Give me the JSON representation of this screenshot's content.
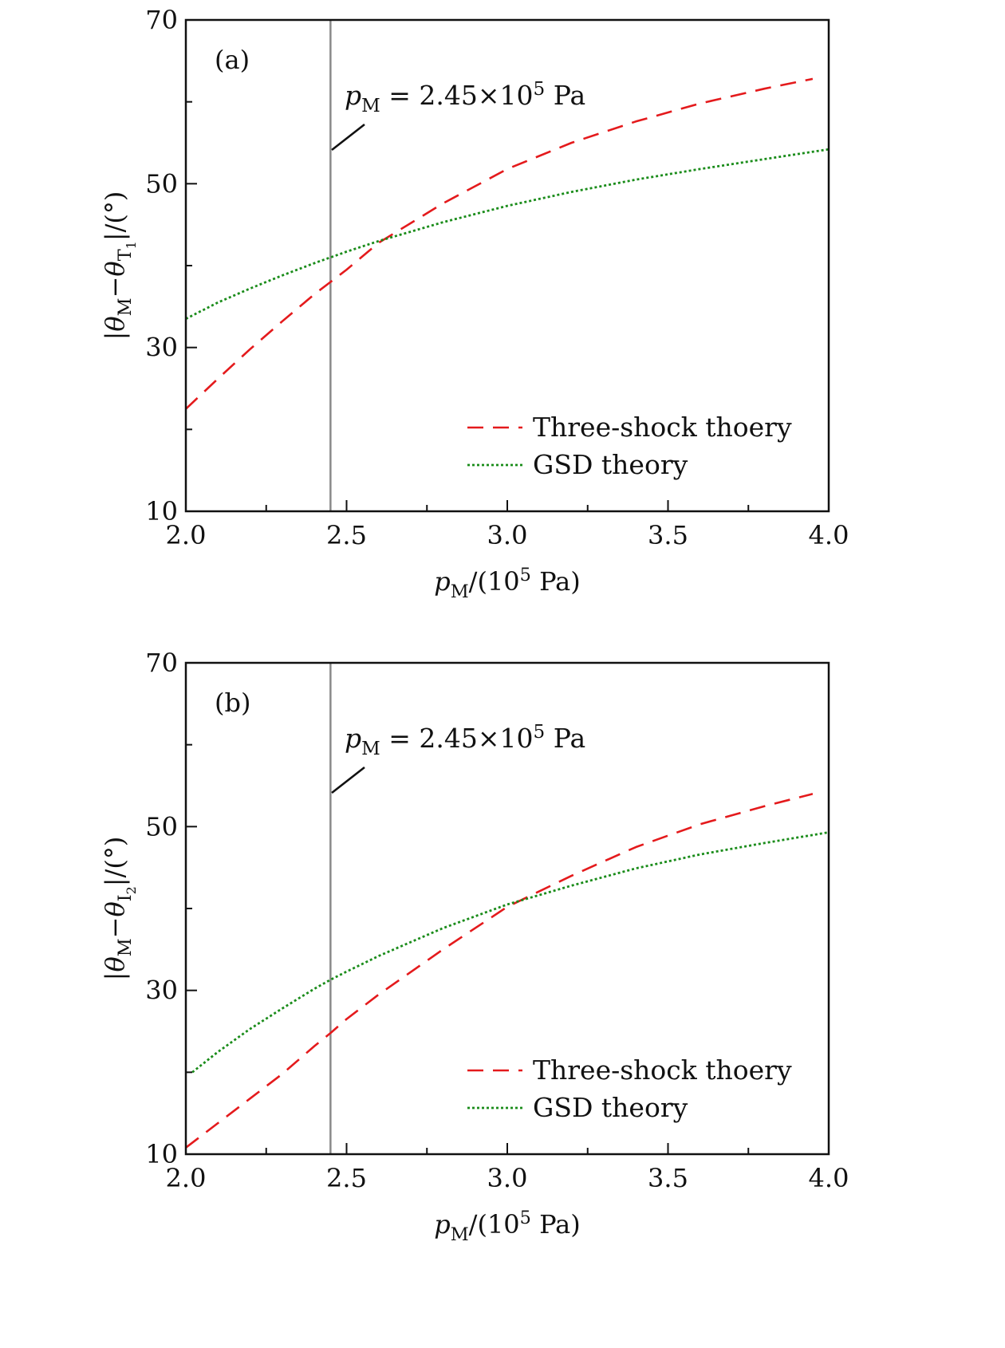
{
  "chart_data": [
    {
      "type": "line",
      "panel_label": "(a)",
      "xlabel": "pM/(10⁵ Pa)",
      "ylabel": "|θM−θT1|/(°)",
      "xlim": [
        2.0,
        4.0
      ],
      "ylim": [
        10,
        70
      ],
      "x_ticks": [
        "2.0",
        "2.5",
        "3.0",
        "3.5",
        "4.0"
      ],
      "y_ticks": [
        "10",
        "30",
        "50",
        "70"
      ],
      "grid": false,
      "legend_position": "bottom-right",
      "vertical_line_x": 2.45,
      "annotation": "pM = 2.45×10⁵ Pa",
      "series": [
        {
          "name": "Three-shock thoery",
          "style": "dashed",
          "color": "#e41a1c",
          "x": [
            2.0,
            2.1,
            2.2,
            2.3,
            2.4,
            2.45,
            2.5,
            2.6,
            2.8,
            3.0,
            3.2,
            3.4,
            3.6,
            3.8,
            3.95
          ],
          "y": [
            22.5,
            26.2,
            29.8,
            33.2,
            36.5,
            38.0,
            39.5,
            42.8,
            47.6,
            51.8,
            55.0,
            57.6,
            59.8,
            61.6,
            62.8
          ]
        },
        {
          "name": "GSD theory",
          "style": "dotted",
          "color": "#1a8c1a",
          "x": [
            2.0,
            2.1,
            2.2,
            2.3,
            2.4,
            2.45,
            2.5,
            2.6,
            2.8,
            3.0,
            3.2,
            3.4,
            3.6,
            3.8,
            4.0
          ],
          "y": [
            33.5,
            35.5,
            37.2,
            38.8,
            40.3,
            41.0,
            41.7,
            43.0,
            45.3,
            47.3,
            49.0,
            50.5,
            51.8,
            53.0,
            54.2
          ]
        }
      ]
    },
    {
      "type": "line",
      "panel_label": "(b)",
      "xlabel": "pM/(10⁵ Pa)",
      "ylabel": "|θM−θI2|/(°)",
      "xlim": [
        2.0,
        4.0
      ],
      "ylim": [
        10,
        70
      ],
      "x_ticks": [
        "2.0",
        "2.5",
        "3.0",
        "3.5",
        "4.0"
      ],
      "y_ticks": [
        "10",
        "30",
        "50",
        "70"
      ],
      "grid": false,
      "legend_position": "bottom-right",
      "vertical_line_x": 2.45,
      "annotation": "pM = 2.45×10⁵ Pa",
      "series": [
        {
          "name": "Three-shock thoery",
          "style": "dashed",
          "color": "#e41a1c",
          "x": [
            2.0,
            2.1,
            2.2,
            2.3,
            2.4,
            2.45,
            2.5,
            2.6,
            2.8,
            3.0,
            3.2,
            3.4,
            3.6,
            3.8,
            3.95
          ],
          "y": [
            10.8,
            13.8,
            16.8,
            19.8,
            23.2,
            24.8,
            26.5,
            29.5,
            35.0,
            40.2,
            44.0,
            47.5,
            50.3,
            52.5,
            54.0
          ]
        },
        {
          "name": "GSD theory",
          "style": "dotted",
          "color": "#1a8c1a",
          "x": [
            2.02,
            2.1,
            2.2,
            2.3,
            2.4,
            2.45,
            2.5,
            2.6,
            2.8,
            3.0,
            3.2,
            3.4,
            3.6,
            3.8,
            4.0
          ],
          "y": [
            20.0,
            22.5,
            25.3,
            27.8,
            30.2,
            31.3,
            32.3,
            34.2,
            37.6,
            40.5,
            42.8,
            44.9,
            46.6,
            48.0,
            49.3
          ]
        }
      ]
    }
  ]
}
